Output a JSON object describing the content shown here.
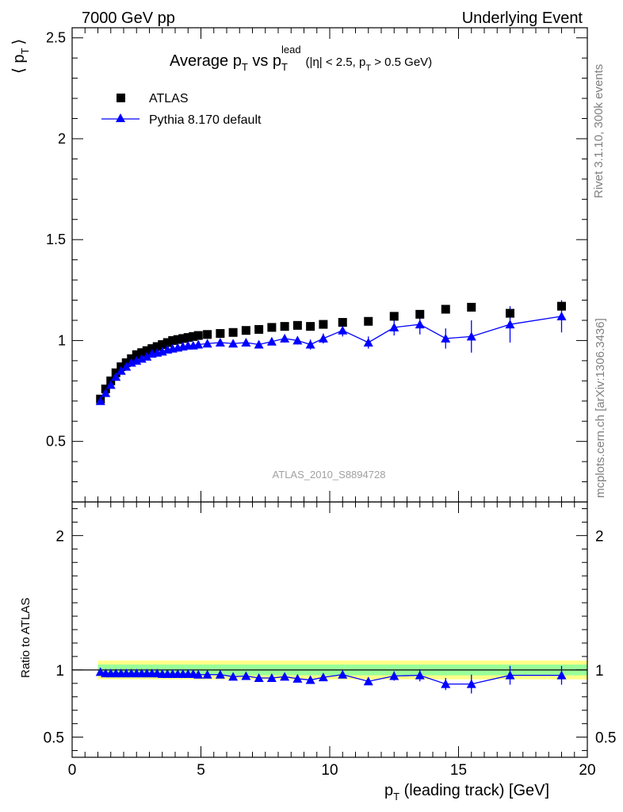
{
  "header": {
    "left": "7000 GeV pp",
    "right": "Underlying Event"
  },
  "side_labels": {
    "rivet": "Rivet 3.1.10,  300k events",
    "mcplots": "mcplots.cern.ch [arXiv:1306.3436]"
  },
  "watermark": "ATLAS_2010_S8894728",
  "colors": {
    "atlas": "#000000",
    "pythia": "#0000ff",
    "band_inner": "#99ff99",
    "band_outer": "#ffff88"
  },
  "chart_data": [
    {
      "type": "scatter",
      "title": "Average p_T vs p_T^lead",
      "title_parts": {
        "main": "Average p",
        "sub1": "T",
        "vs": " vs p",
        "sub2": "T",
        "sup": "lead",
        "cond_open": "(|η| < 2.5, p",
        "cond_sub": "T",
        "cond_close": " > 0.5 GeV)"
      },
      "ylabel": "⟨ p_T ⟩",
      "ylabel_parts": {
        "open": "⟨ p",
        "sub": "T",
        "close": "⟩"
      },
      "xlim": [
        0,
        20
      ],
      "ylim": [
        0.2,
        2.55
      ],
      "yticks": [
        0.5,
        1,
        1.5,
        2,
        2.5
      ],
      "ytick_labels": [
        "0.5",
        "1",
        "1.5",
        "2",
        "2.5"
      ],
      "legend": {
        "position": "top-left",
        "entries": [
          "ATLAS",
          "Pythia 8.170 default"
        ]
      },
      "series": [
        {
          "name": "ATLAS",
          "marker": "square",
          "x": [
            1.1,
            1.3,
            1.5,
            1.7,
            1.9,
            2.1,
            2.3,
            2.5,
            2.7,
            2.9,
            3.1,
            3.3,
            3.5,
            3.7,
            3.9,
            4.1,
            4.3,
            4.5,
            4.7,
            4.9,
            5.25,
            5.75,
            6.25,
            6.75,
            7.25,
            7.75,
            8.25,
            8.75,
            9.25,
            9.75,
            10.5,
            11.5,
            12.5,
            13.5,
            14.5,
            15.5,
            17.0,
            19.0
          ],
          "y": [
            0.71,
            0.76,
            0.8,
            0.84,
            0.87,
            0.89,
            0.91,
            0.93,
            0.94,
            0.95,
            0.96,
            0.97,
            0.98,
            0.99,
            1.0,
            1.005,
            1.01,
            1.015,
            1.02,
            1.025,
            1.03,
            1.035,
            1.04,
            1.05,
            1.055,
            1.065,
            1.07,
            1.075,
            1.07,
            1.08,
            1.09,
            1.095,
            1.12,
            1.13,
            1.155,
            1.165,
            1.135,
            1.17
          ]
        },
        {
          "name": "Pythia 8.170 default",
          "marker": "triangle",
          "x": [
            1.1,
            1.3,
            1.5,
            1.7,
            1.9,
            2.1,
            2.3,
            2.5,
            2.7,
            2.9,
            3.1,
            3.3,
            3.5,
            3.7,
            3.9,
            4.1,
            4.3,
            4.5,
            4.7,
            4.9,
            5.25,
            5.75,
            6.25,
            6.75,
            7.25,
            7.75,
            8.25,
            8.75,
            9.25,
            9.75,
            10.5,
            11.5,
            12.5,
            13.5,
            14.5,
            15.5,
            17.0,
            19.0
          ],
          "y": [
            0.7,
            0.74,
            0.78,
            0.82,
            0.85,
            0.87,
            0.89,
            0.9,
            0.91,
            0.92,
            0.935,
            0.94,
            0.945,
            0.955,
            0.96,
            0.965,
            0.97,
            0.975,
            0.975,
            0.98,
            0.985,
            0.99,
            0.985,
            0.99,
            0.98,
            0.995,
            1.01,
            1.0,
            0.98,
            1.01,
            1.05,
            0.99,
            1.065,
            1.08,
            1.01,
            1.02,
            1.08,
            1.12
          ],
          "yerr": [
            0.01,
            0.01,
            0.01,
            0.01,
            0.01,
            0.01,
            0.01,
            0.01,
            0.01,
            0.01,
            0.01,
            0.01,
            0.01,
            0.01,
            0.01,
            0.01,
            0.01,
            0.01,
            0.01,
            0.01,
            0.01,
            0.015,
            0.015,
            0.015,
            0.015,
            0.015,
            0.02,
            0.02,
            0.025,
            0.025,
            0.03,
            0.03,
            0.04,
            0.05,
            0.05,
            0.08,
            0.09,
            0.08
          ]
        }
      ]
    },
    {
      "type": "scatter",
      "ylabel": "Ratio to ATLAS",
      "xlabel": "p_T (leading track) [GeV]",
      "xlabel_parts": {
        "main": "p",
        "sub": "T",
        "rest": " (leading track) [GeV]"
      },
      "xlim": [
        0,
        20
      ],
      "ylim": [
        0.35,
        2.25
      ],
      "xticks": [
        0,
        5,
        10,
        15,
        20
      ],
      "xtick_labels": [
        "0",
        "5",
        "10",
        "15",
        "20"
      ],
      "yticks": [
        0.5,
        1,
        2
      ],
      "ytick_labels": [
        "0.5",
        "1",
        "2"
      ],
      "band_x": [
        1.0,
        20.0
      ],
      "band_inner": [
        0.96,
        1.04
      ],
      "band_outer": [
        0.93,
        1.07
      ],
      "series": [
        {
          "name": "Pythia 8.170 default",
          "x": [
            1.1,
            1.3,
            1.5,
            1.7,
            1.9,
            2.1,
            2.3,
            2.5,
            2.7,
            2.9,
            3.1,
            3.3,
            3.5,
            3.7,
            3.9,
            4.1,
            4.3,
            4.5,
            4.7,
            4.9,
            5.25,
            5.75,
            6.25,
            6.75,
            7.25,
            7.75,
            8.25,
            8.75,
            9.25,
            9.75,
            10.5,
            11.5,
            12.5,
            13.5,
            14.5,
            15.5,
            17.0,
            19.0
          ],
          "y": [
            0.985,
            0.975,
            0.975,
            0.975,
            0.975,
            0.975,
            0.975,
            0.975,
            0.975,
            0.975,
            0.975,
            0.975,
            0.97,
            0.97,
            0.97,
            0.97,
            0.97,
            0.97,
            0.97,
            0.965,
            0.965,
            0.965,
            0.95,
            0.955,
            0.94,
            0.94,
            0.95,
            0.935,
            0.925,
            0.945,
            0.965,
            0.915,
            0.955,
            0.96,
            0.895,
            0.895,
            0.96,
            0.96
          ],
          "yerr": [
            0.01,
            0.01,
            0.01,
            0.01,
            0.01,
            0.01,
            0.01,
            0.01,
            0.01,
            0.01,
            0.01,
            0.01,
            0.01,
            0.01,
            0.01,
            0.01,
            0.01,
            0.01,
            0.01,
            0.01,
            0.01,
            0.015,
            0.015,
            0.015,
            0.015,
            0.015,
            0.02,
            0.02,
            0.02,
            0.02,
            0.025,
            0.025,
            0.035,
            0.045,
            0.045,
            0.07,
            0.07,
            0.07
          ]
        }
      ]
    }
  ]
}
